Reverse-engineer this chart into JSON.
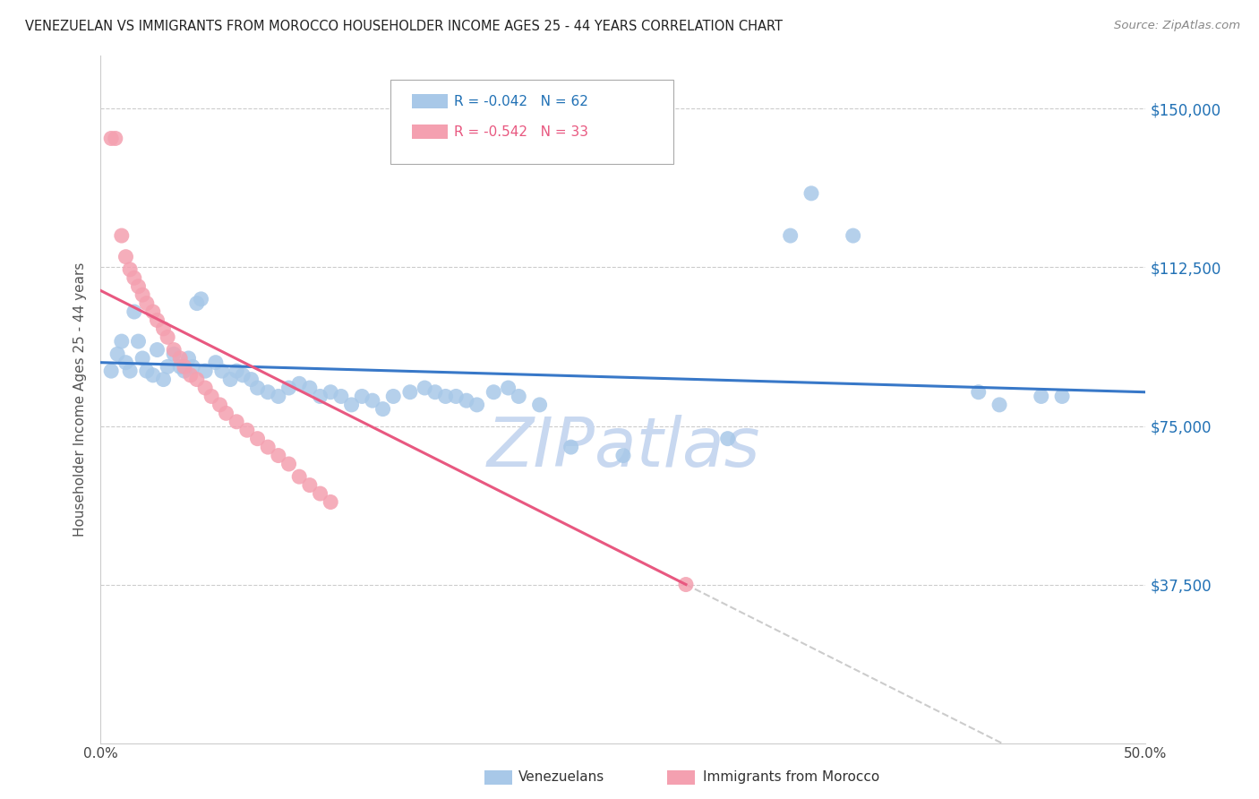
{
  "title": "VENEZUELAN VS IMMIGRANTS FROM MOROCCO HOUSEHOLDER INCOME AGES 25 - 44 YEARS CORRELATION CHART",
  "source": "Source: ZipAtlas.com",
  "ylabel": "Householder Income Ages 25 - 44 years",
  "ytick_labels": [
    "$37,500",
    "$75,000",
    "$112,500",
    "$150,000"
  ],
  "ytick_values": [
    37500,
    75000,
    112500,
    150000
  ],
  "ymin": 0,
  "ymax": 162500,
  "xmin": 0.0,
  "xmax": 0.5,
  "legend_blue_r": "R = -0.042",
  "legend_blue_n": "N = 62",
  "legend_pink_r": "R = -0.542",
  "legend_pink_n": "N = 33",
  "legend_blue_label": "Venezuelans",
  "legend_pink_label": "Immigrants from Morocco",
  "blue_color": "#a8c8e8",
  "pink_color": "#f4a0b0",
  "blue_line_color": "#3878c8",
  "pink_line_color": "#e85880",
  "blue_dots": [
    [
      0.005,
      88000
    ],
    [
      0.008,
      92000
    ],
    [
      0.01,
      95000
    ],
    [
      0.012,
      90000
    ],
    [
      0.014,
      88000
    ],
    [
      0.016,
      102000
    ],
    [
      0.018,
      95000
    ],
    [
      0.02,
      91000
    ],
    [
      0.022,
      88000
    ],
    [
      0.025,
      87000
    ],
    [
      0.027,
      93000
    ],
    [
      0.03,
      86000
    ],
    [
      0.032,
      89000
    ],
    [
      0.035,
      92000
    ],
    [
      0.038,
      89000
    ],
    [
      0.04,
      88000
    ],
    [
      0.042,
      91000
    ],
    [
      0.044,
      89000
    ],
    [
      0.046,
      104000
    ],
    [
      0.048,
      105000
    ],
    [
      0.05,
      88000
    ],
    [
      0.055,
      90000
    ],
    [
      0.058,
      88000
    ],
    [
      0.062,
      86000
    ],
    [
      0.065,
      88000
    ],
    [
      0.068,
      87000
    ],
    [
      0.072,
      86000
    ],
    [
      0.075,
      84000
    ],
    [
      0.08,
      83000
    ],
    [
      0.085,
      82000
    ],
    [
      0.09,
      84000
    ],
    [
      0.095,
      85000
    ],
    [
      0.1,
      84000
    ],
    [
      0.105,
      82000
    ],
    [
      0.11,
      83000
    ],
    [
      0.115,
      82000
    ],
    [
      0.12,
      80000
    ],
    [
      0.125,
      82000
    ],
    [
      0.13,
      81000
    ],
    [
      0.135,
      79000
    ],
    [
      0.14,
      82000
    ],
    [
      0.148,
      83000
    ],
    [
      0.155,
      84000
    ],
    [
      0.16,
      83000
    ],
    [
      0.165,
      82000
    ],
    [
      0.17,
      82000
    ],
    [
      0.175,
      81000
    ],
    [
      0.18,
      80000
    ],
    [
      0.188,
      83000
    ],
    [
      0.195,
      84000
    ],
    [
      0.2,
      82000
    ],
    [
      0.21,
      80000
    ],
    [
      0.225,
      70000
    ],
    [
      0.25,
      68000
    ],
    [
      0.3,
      72000
    ],
    [
      0.33,
      120000
    ],
    [
      0.34,
      130000
    ],
    [
      0.36,
      120000
    ],
    [
      0.42,
      83000
    ],
    [
      0.43,
      80000
    ],
    [
      0.45,
      82000
    ],
    [
      0.46,
      82000
    ]
  ],
  "pink_dots": [
    [
      0.005,
      143000
    ],
    [
      0.007,
      143000
    ],
    [
      0.01,
      120000
    ],
    [
      0.012,
      115000
    ],
    [
      0.014,
      112000
    ],
    [
      0.016,
      110000
    ],
    [
      0.018,
      108000
    ],
    [
      0.02,
      106000
    ],
    [
      0.022,
      104000
    ],
    [
      0.025,
      102000
    ],
    [
      0.027,
      100000
    ],
    [
      0.03,
      98000
    ],
    [
      0.032,
      96000
    ],
    [
      0.035,
      93000
    ],
    [
      0.038,
      91000
    ],
    [
      0.04,
      89000
    ],
    [
      0.043,
      87000
    ],
    [
      0.046,
      86000
    ],
    [
      0.05,
      84000
    ],
    [
      0.053,
      82000
    ],
    [
      0.057,
      80000
    ],
    [
      0.06,
      78000
    ],
    [
      0.065,
      76000
    ],
    [
      0.07,
      74000
    ],
    [
      0.075,
      72000
    ],
    [
      0.08,
      70000
    ],
    [
      0.085,
      68000
    ],
    [
      0.09,
      66000
    ],
    [
      0.095,
      63000
    ],
    [
      0.1,
      61000
    ],
    [
      0.105,
      59000
    ],
    [
      0.11,
      57000
    ],
    [
      0.28,
      37500
    ]
  ],
  "watermark_zip": "ZIP",
  "watermark_atlas": "atlas",
  "watermark_color": "#c8d8f0",
  "watermark_fontsize": 55
}
